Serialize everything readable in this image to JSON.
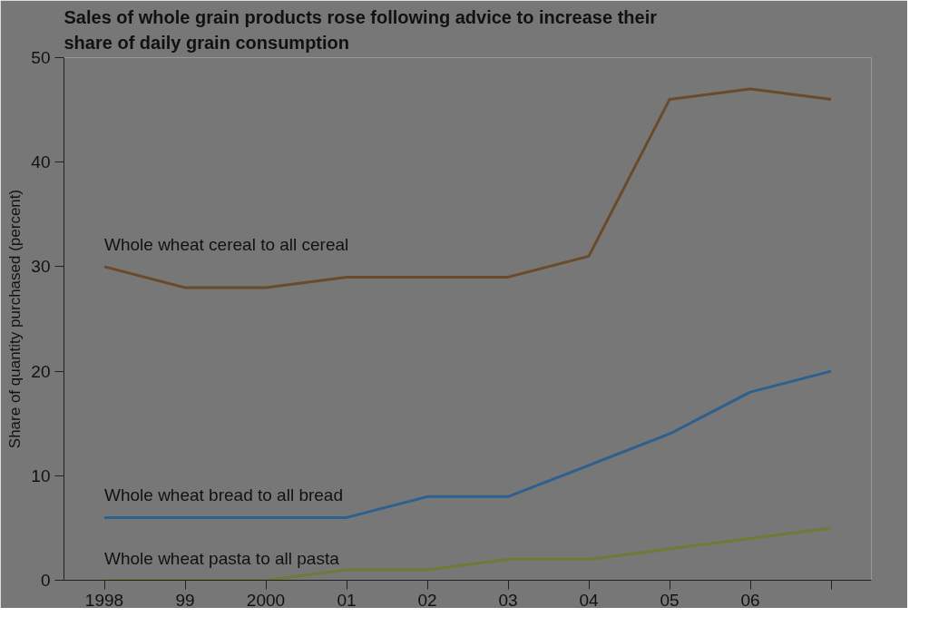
{
  "chart_data": {
    "type": "line",
    "title": "Sales of whole grain products rose following advice to increase their share of daily grain consumption",
    "ylabel": "Share of quantity purchased (percent)",
    "x": [
      1998,
      1999,
      2000,
      2001,
      2002,
      2003,
      2004,
      2005,
      2006,
      2007
    ],
    "series": [
      {
        "name": "Whole wheat cereal to all cereal",
        "color": "#6b4a2a",
        "values": [
          30,
          28,
          28,
          29,
          29,
          29,
          31,
          46,
          47,
          46
        ]
      },
      {
        "name": "Whole wheat bread to all bread",
        "color": "#2d5f8f",
        "values": [
          6,
          6,
          6,
          6,
          8,
          8,
          11,
          14,
          18,
          20
        ]
      },
      {
        "name": "Whole wheat pasta to all pasta",
        "color": "#6e7a35",
        "values": [
          0,
          0,
          0,
          1,
          1,
          2,
          2,
          3,
          4,
          5
        ]
      }
    ],
    "xlim": [
      1997.5,
      2007.5
    ],
    "ylim": [
      0,
      50
    ],
    "xticks": [
      {
        "value": 1998,
        "label": "1998"
      },
      {
        "value": 1999,
        "label": "99"
      },
      {
        "value": 2000,
        "label": "2000"
      },
      {
        "value": 2001,
        "label": "01"
      },
      {
        "value": 2002,
        "label": "02"
      },
      {
        "value": 2003,
        "label": "03"
      },
      {
        "value": 2004,
        "label": "04"
      },
      {
        "value": 2005,
        "label": "05"
      },
      {
        "value": 2006,
        "label": "06"
      },
      {
        "value": 2007,
        "label": null
      }
    ],
    "yticks": [
      0,
      10,
      20,
      30,
      40,
      50
    ],
    "grid": false,
    "legend": false,
    "marker": "none",
    "line_style": "solid"
  }
}
